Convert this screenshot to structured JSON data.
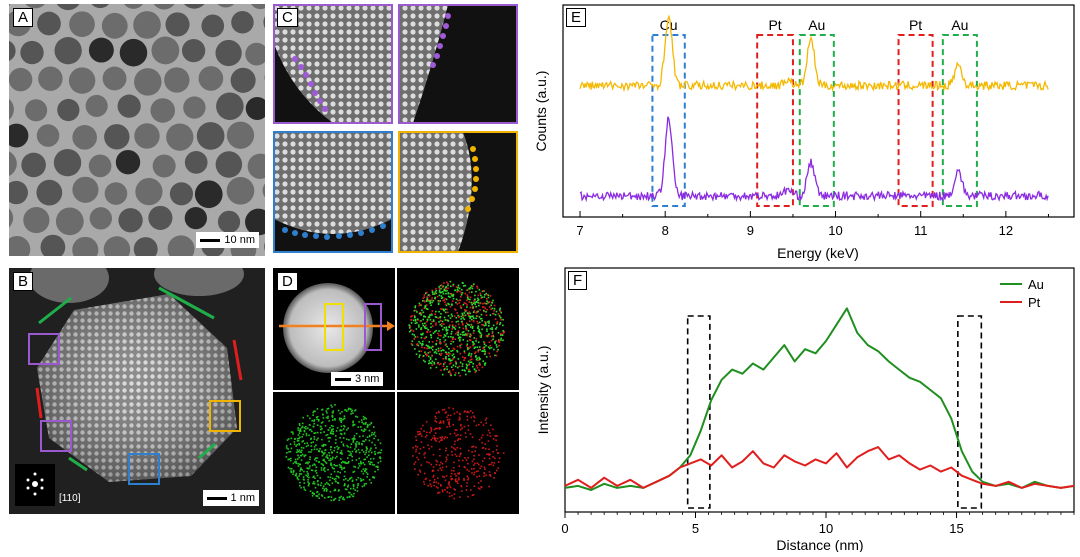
{
  "panels": {
    "A": {
      "label": "A",
      "scale_bar": "10 nm"
    },
    "B": {
      "label": "B",
      "scale_bar": "1 nm",
      "zone_axis": "[110]"
    },
    "C": {
      "label": "C"
    },
    "D": {
      "label": "D",
      "scale_bar": "3 nm"
    },
    "E": {
      "label": "E"
    },
    "F": {
      "label": "F"
    }
  },
  "colors": {
    "purple": "#9b59d0",
    "blue": "#2f7fd0",
    "yellow": "#f0b400",
    "green": "#1f8f1f",
    "red": "#e01e1e",
    "orange": "#f08020",
    "spec_yellow": "#f5b800",
    "spec_purple": "#8a2be2"
  },
  "chart_data": [
    {
      "id": "E",
      "type": "line",
      "title": "",
      "xlabel": "Energy (keV)",
      "ylabel": "Counts (a.u.)",
      "xlim": [
        6.8,
        12.8
      ],
      "xticks": [
        7,
        8,
        9,
        10,
        11,
        12
      ],
      "peak_labels": [
        {
          "label": "Cu",
          "energy": 8.04,
          "box": [
            7.85,
            8.23
          ],
          "color": "#2f7fd0"
        },
        {
          "label": "Pt",
          "energy": 9.44,
          "box": [
            9.08,
            9.5
          ],
          "color": "#e01e1e"
        },
        {
          "label": "Au",
          "energy": 9.71,
          "box": [
            9.58,
            9.98
          ],
          "color": "#1fae4a"
        },
        {
          "label": "Pt",
          "energy": 11.07,
          "box": [
            10.74,
            11.14
          ],
          "color": "#e01e1e"
        },
        {
          "label": "Au",
          "energy": 11.44,
          "box": [
            11.26,
            11.66
          ],
          "color": "#1fae4a"
        }
      ],
      "series": [
        {
          "name": "yellow",
          "color": "#f5b800",
          "baseline": 0.62,
          "energy_range": [
            7.0,
            12.5
          ],
          "peaks": [
            {
              "x": 8.04,
              "h": 0.32
            },
            {
              "x": 9.71,
              "h": 0.22
            },
            {
              "x": 11.44,
              "h": 0.1
            },
            {
              "x": 9.44,
              "h": 0.03
            }
          ]
        },
        {
          "name": "purple",
          "color": "#8a2be2",
          "baseline": 0.1,
          "energy_range": [
            7.0,
            12.5
          ],
          "peaks": [
            {
              "x": 8.04,
              "h": 0.36
            },
            {
              "x": 9.71,
              "h": 0.16
            },
            {
              "x": 11.44,
              "h": 0.12
            },
            {
              "x": 9.44,
              "h": 0.03
            }
          ]
        }
      ]
    },
    {
      "id": "F",
      "type": "line",
      "title": "",
      "xlabel": "Distance (nm)",
      "ylabel": "Intensity (a.u.)",
      "xlim": [
        0,
        19.5
      ],
      "xticks": [
        0,
        5,
        10,
        15
      ],
      "legend": [
        "Au",
        "Pt"
      ],
      "legend_position": "top-right",
      "boxes": [
        [
          4.7,
          5.55
        ],
        [
          15.05,
          15.95
        ]
      ],
      "series": [
        {
          "name": "Au",
          "color": "#1f8f1f",
          "x": [
            0,
            0.5,
            1,
            1.5,
            2,
            2.5,
            3,
            3.5,
            4,
            4.4,
            4.8,
            5.2,
            5.6,
            6,
            6.4,
            6.8,
            7.2,
            7.6,
            8,
            8.4,
            8.8,
            9.2,
            9.6,
            10,
            10.4,
            10.8,
            11.2,
            11.6,
            12,
            12.4,
            12.8,
            13.2,
            13.6,
            14,
            14.4,
            14.8,
            15.2,
            15.6,
            16,
            16.5,
            17,
            17.5,
            18,
            18.5,
            19,
            19.5
          ],
          "values": [
            0.02,
            0.03,
            0.01,
            0.04,
            0.02,
            0.03,
            0.02,
            0.05,
            0.08,
            0.12,
            0.18,
            0.3,
            0.45,
            0.55,
            0.6,
            0.58,
            0.63,
            0.6,
            0.66,
            0.72,
            0.64,
            0.7,
            0.68,
            0.74,
            0.82,
            0.9,
            0.78,
            0.72,
            0.69,
            0.64,
            0.6,
            0.56,
            0.54,
            0.5,
            0.46,
            0.36,
            0.2,
            0.1,
            0.05,
            0.03,
            0.04,
            0.02,
            0.05,
            0.03,
            0.02,
            0.03
          ]
        },
        {
          "name": "Pt",
          "color": "#e01e1e",
          "x": [
            0,
            0.5,
            1,
            1.5,
            2,
            2.5,
            3,
            3.5,
            4,
            4.4,
            4.8,
            5.2,
            5.6,
            6,
            6.4,
            6.8,
            7.2,
            7.6,
            8,
            8.4,
            8.8,
            9.2,
            9.6,
            10,
            10.4,
            10.8,
            11.2,
            11.6,
            12,
            12.4,
            12.8,
            13.2,
            13.6,
            14,
            14.4,
            14.8,
            15.2,
            15.6,
            16,
            16.5,
            17,
            17.5,
            18,
            18.5,
            19,
            19.5
          ],
          "values": [
            0.03,
            0.06,
            0.02,
            0.07,
            0.03,
            0.06,
            0.02,
            0.05,
            0.08,
            0.12,
            0.14,
            0.16,
            0.13,
            0.18,
            0.12,
            0.15,
            0.2,
            0.14,
            0.12,
            0.18,
            0.15,
            0.13,
            0.16,
            0.14,
            0.19,
            0.12,
            0.17,
            0.2,
            0.22,
            0.16,
            0.18,
            0.14,
            0.11,
            0.13,
            0.1,
            0.12,
            0.08,
            0.06,
            0.04,
            0.03,
            0.05,
            0.02,
            0.04,
            0.03,
            0.02,
            0.03
          ]
        }
      ]
    }
  ]
}
